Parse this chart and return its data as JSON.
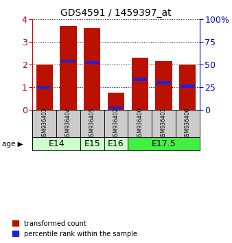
{
  "title": "GDS4591 / 1459397_at",
  "samples": [
    "GSM936403",
    "GSM936404",
    "GSM936405",
    "GSM936402",
    "GSM936400",
    "GSM936401",
    "GSM936406"
  ],
  "transformed_counts": [
    2.0,
    3.7,
    3.6,
    0.75,
    2.3,
    2.15,
    2.0
  ],
  "percentile_ranks": [
    1.0,
    2.15,
    2.1,
    0.1,
    1.35,
    1.2,
    1.05
  ],
  "age_groups": [
    {
      "label": "E14",
      "samples": [
        0,
        1
      ],
      "color": "#ccffcc"
    },
    {
      "label": "E15",
      "samples": [
        2
      ],
      "color": "#ccffcc"
    },
    {
      "label": "E16",
      "samples": [
        3
      ],
      "color": "#ccffcc"
    },
    {
      "label": "E17.5",
      "samples": [
        4,
        5,
        6
      ],
      "color": "#44ee44"
    }
  ],
  "bar_color": "#bb1100",
  "percentile_color": "#2222cc",
  "ylim": [
    0,
    4
  ],
  "yticks_left": [
    0,
    1,
    2,
    3,
    4
  ],
  "yticks_right": [
    0,
    25,
    50,
    75,
    100
  ],
  "ylabel_left_color": "#cc0000",
  "ylabel_right_color": "#0000cc",
  "bar_width": 0.7,
  "legend_items": [
    "transformed count",
    "percentile rank within the sample"
  ]
}
